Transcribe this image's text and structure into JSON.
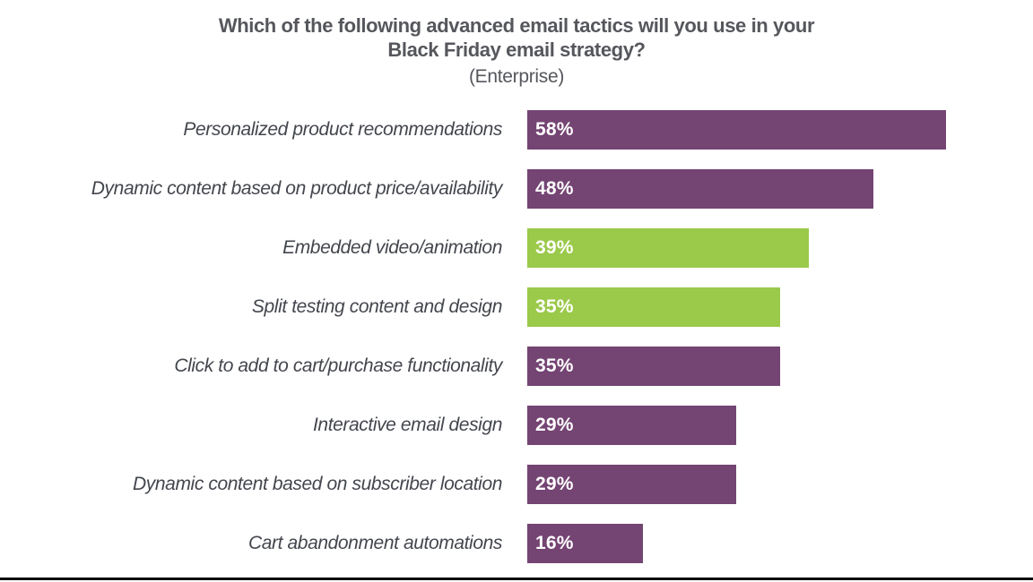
{
  "title": {
    "line1": "Which of the following advanced email tactics will you use in your",
    "line2": "Black Friday email strategy?",
    "subtitle": "(Enterprise)"
  },
  "colors": {
    "purple": "#744473",
    "green": "#9bc94a",
    "title_text": "#55575c",
    "label_text": "#43464d",
    "value_text": "#ffffff",
    "bottom_rule": "#000000",
    "background": "#ffffff"
  },
  "chart_data": {
    "type": "bar",
    "orientation": "horizontal",
    "title": "Which of the following advanced email tactics will you use in your Black Friday email strategy?",
    "subtitle": "(Enterprise)",
    "categories": [
      "Personalized product recommendations",
      "Dynamic content based on product price/availability",
      "Embedded video/animation",
      "Split testing content and design",
      "Click to add to cart/purchase functionality",
      "Interactive email design",
      "Dynamic content based on subscriber location",
      "Cart abandonment automations"
    ],
    "values": [
      58,
      48,
      39,
      35,
      35,
      29,
      29,
      16
    ],
    "value_labels": [
      "58%",
      "48%",
      "39%",
      "35%",
      "35%",
      "29%",
      "29%",
      "16%"
    ],
    "bar_colors": [
      "#744473",
      "#744473",
      "#9bc94a",
      "#9bc94a",
      "#744473",
      "#744473",
      "#744473",
      "#744473"
    ],
    "xlim": [
      0,
      100
    ],
    "axis_hidden": true,
    "grid": false,
    "legend": false,
    "value_label_position": "inside-left"
  }
}
